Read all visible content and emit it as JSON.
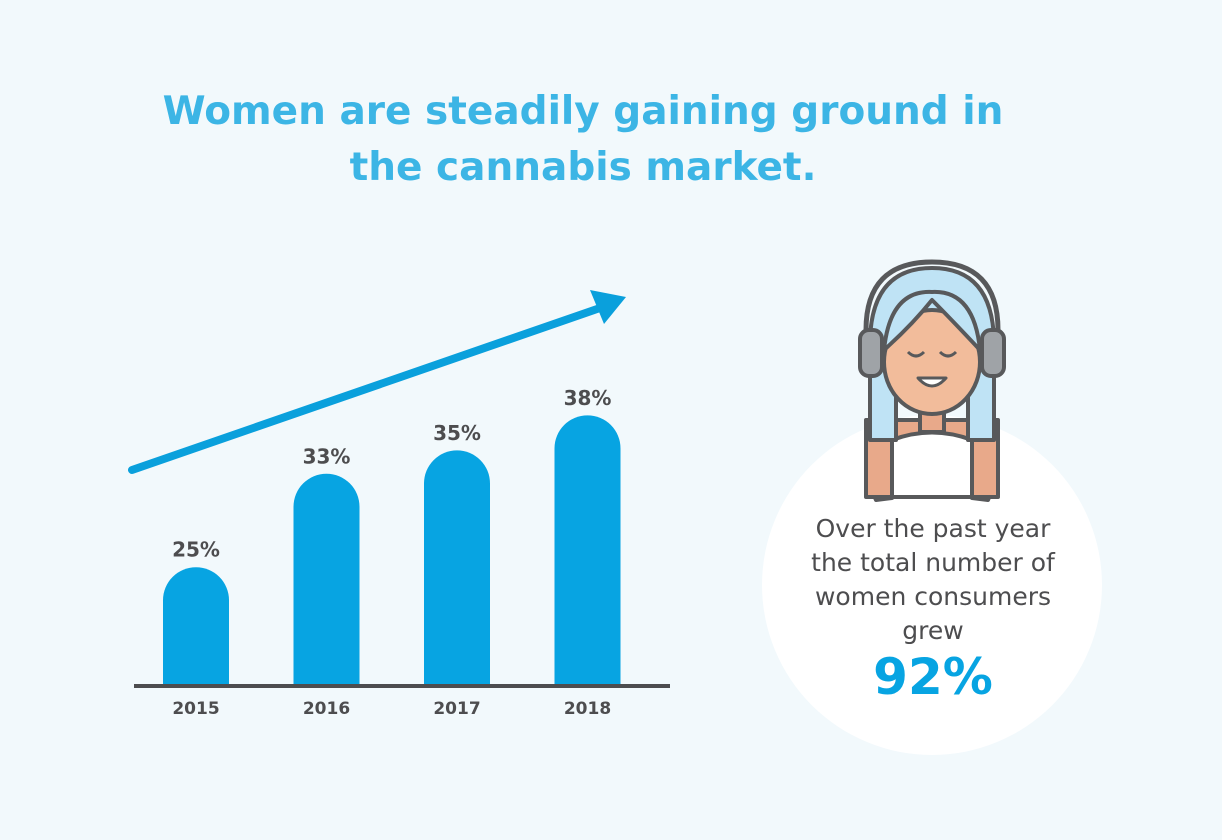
{
  "chart_data": {
    "type": "bar",
    "title": "Women are steadily gaining ground in the cannabis market.",
    "categories": [
      "2015",
      "2016",
      "2017",
      "2018"
    ],
    "values": [
      25,
      33,
      35,
      38
    ],
    "value_labels": [
      "25%",
      "33%",
      "35%",
      "38%"
    ],
    "color": "#07a4e2",
    "ylim": [
      15,
      40
    ],
    "callout": {
      "text": "Over the past year the total number of women consumers grew",
      "figure": "92%"
    }
  }
}
